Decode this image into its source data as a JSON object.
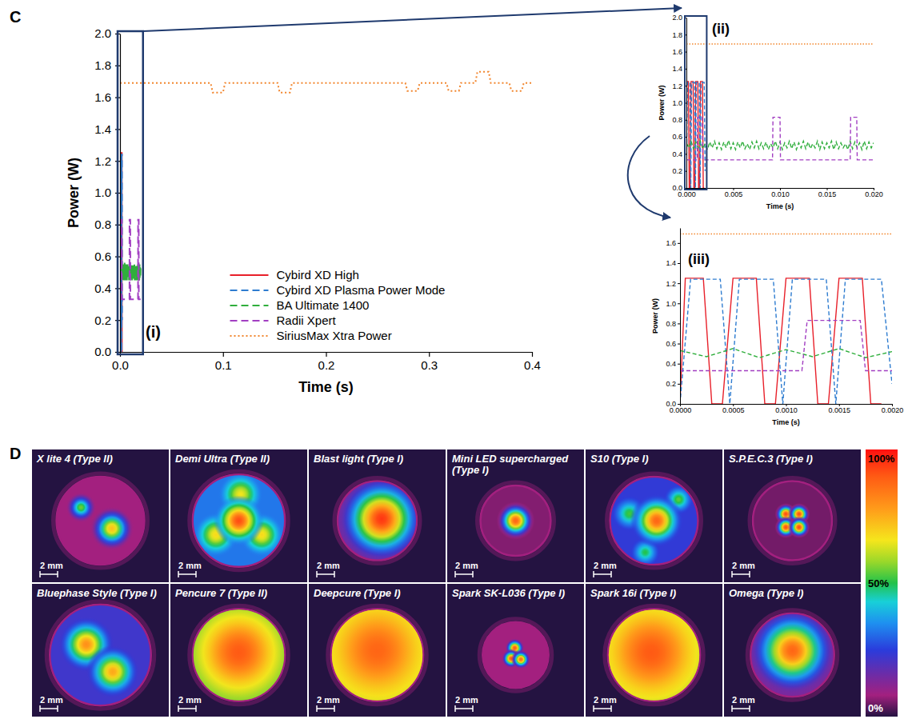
{
  "chart_data": {
    "type": "line",
    "panel": "C",
    "annotation": "(i)",
    "xlabel": "Time (s)",
    "ylabel": "Power (W)",
    "xlim": [
      0,
      0.4
    ],
    "ylim": [
      0,
      2
    ],
    "xticks": [
      {
        "value": 0,
        "label": "0.0"
      },
      0.1,
      0.2,
      0.3,
      0.4
    ],
    "yticks": [
      {
        "value": 0,
        "label": "0.0"
      },
      0.2,
      0.4,
      0.6,
      0.8,
      {
        "value": 1,
        "label": "1.0"
      },
      1.2,
      1.4,
      1.6,
      1.8,
      {
        "value": 2,
        "label": "2.0"
      }
    ],
    "grid": false,
    "legend": "bottom",
    "series": [
      {
        "name": "Cybird XD High",
        "color": "#e8202a",
        "line_style": "solid",
        "x": [
          0,
          5e-05,
          0.00022,
          0.0003,
          0.0004,
          0.0005,
          0.00072,
          0.0008,
          0.0009,
          0.001,
          0.00122,
          0.0013,
          0.0014,
          0.0015,
          0.00172,
          0.0018,
          0.0019
        ],
        "values": [
          0,
          1.25,
          1.25,
          0,
          0,
          1.25,
          1.25,
          0,
          0,
          1.25,
          1.25,
          0,
          0,
          1.25,
          1.25,
          0,
          0
        ]
      },
      {
        "name": "Cybird XD Plasma Power Mode",
        "color": "#2e7cd0",
        "line_style": "dashed",
        "x": [
          0,
          0.0001,
          0.00038,
          0.00047,
          0.00056,
          0.00088,
          0.00097,
          0.00106,
          0.00138,
          0.00147,
          0.00156,
          0.0019,
          0.002
        ],
        "values": [
          0,
          1.24,
          1.24,
          0,
          1.24,
          1.24,
          0,
          1.24,
          1.24,
          0,
          1.24,
          1.24,
          0.2
        ]
      },
      {
        "name": "BA Ultimate 1400",
        "color": "#2fae3c",
        "line_style": "dashed",
        "x": [
          0,
          0.00025,
          0.0005,
          0.00075,
          0.001,
          0.00125,
          0.0015,
          0.00175,
          0.002,
          0.00225,
          0.0025,
          0.00275,
          0.003,
          0.00325,
          0.0035,
          0.00375,
          0.004,
          0.00425,
          0.0045,
          0.00475,
          0.005,
          0.00525,
          0.0055,
          0.00575,
          0.006,
          0.00625,
          0.0065,
          0.00675,
          0.007,
          0.00725,
          0.0075,
          0.00775,
          0.008,
          0.00825,
          0.0085,
          0.00875,
          0.009,
          0.00925,
          0.0095,
          0.00975,
          0.01,
          0.01025,
          0.0105,
          0.01075,
          0.011,
          0.01125,
          0.0115,
          0.01175,
          0.012,
          0.01225,
          0.0125,
          0.01275,
          0.013,
          0.01325,
          0.0135,
          0.01375,
          0.014,
          0.01425,
          0.0145,
          0.01475,
          0.015,
          0.01525,
          0.0155,
          0.01575,
          0.016,
          0.01625,
          0.0165,
          0.01675,
          0.017,
          0.01725,
          0.0175,
          0.01775,
          0.018,
          0.01825,
          0.0185,
          0.01875,
          0.019,
          0.01925,
          0.0195,
          0.01975,
          0.02
        ],
        "values": [
          0.53,
          0.47,
          0.55,
          0.46,
          0.54,
          0.47,
          0.55,
          0.46,
          0.52,
          0.45,
          0.54,
          0.47,
          0.55,
          0.46,
          0.53,
          0.45,
          0.54,
          0.47,
          0.56,
          0.46,
          0.53,
          0.45,
          0.54,
          0.47,
          0.55,
          0.46,
          0.52,
          0.45,
          0.54,
          0.47,
          0.55,
          0.46,
          0.53,
          0.46,
          0.54,
          0.45,
          0.52,
          0.47,
          0.55,
          0.46,
          0.54,
          0.45,
          0.53,
          0.47,
          0.55,
          0.46,
          0.54,
          0.45,
          0.53,
          0.47,
          0.55,
          0.46,
          0.54,
          0.46,
          0.52,
          0.47,
          0.55,
          0.45,
          0.54,
          0.46,
          0.53,
          0.47,
          0.55,
          0.45,
          0.54,
          0.46,
          0.53,
          0.47,
          0.52,
          0.45,
          0.55,
          0.46,
          0.54,
          0.47,
          0.53,
          0.45,
          0.55,
          0.46,
          0.54,
          0.47,
          0.53
        ]
      },
      {
        "name": "Radii Xpert",
        "color": "#a23fc2",
        "line_style": "dashed",
        "x": [
          0,
          0.00115,
          0.0012,
          0.0017,
          0.00175,
          0.0092,
          0.00925,
          0.01,
          0.01005,
          0.0175,
          0.01755,
          0.0182,
          0.01825,
          0.02
        ],
        "values": [
          0.33,
          0.33,
          0.83,
          0.83,
          0.33,
          0.33,
          0.83,
          0.83,
          0.33,
          0.33,
          0.83,
          0.83,
          0.33,
          0.33
        ]
      },
      {
        "name": "SiriusMax Xtra Power",
        "color": "#f2862e",
        "line_style": "dotted",
        "x": [
          0,
          0.088,
          0.09,
          0.1,
          0.102,
          0.153,
          0.155,
          0.165,
          0.167,
          0.277,
          0.279,
          0.289,
          0.291,
          0.317,
          0.319,
          0.329,
          0.331,
          0.345,
          0.347,
          0.358,
          0.36,
          0.378,
          0.38,
          0.39,
          0.392,
          0.4
        ],
        "values": [
          1.69,
          1.69,
          1.63,
          1.63,
          1.69,
          1.69,
          1.63,
          1.63,
          1.69,
          1.69,
          1.64,
          1.64,
          1.69,
          1.69,
          1.64,
          1.64,
          1.69,
          1.69,
          1.76,
          1.76,
          1.69,
          1.69,
          1.64,
          1.64,
          1.69,
          1.69
        ]
      }
    ],
    "insets": [
      {
        "annotation": "(ii)",
        "xlabel": "Time (s)",
        "ylabel": "Power (W)",
        "xlim": [
          0,
          0.02
        ],
        "ylim": [
          0,
          2
        ],
        "xticks": [
          {
            "value": 0,
            "label": "0.000"
          },
          0.005,
          {
            "value": 0.01,
            "label": "0.010"
          },
          0.015,
          {
            "value": 0.02,
            "label": "0.020"
          }
        ],
        "yticks": [
          {
            "value": 0,
            "label": "0.0"
          },
          0.2,
          0.4,
          0.6,
          0.8,
          {
            "value": 1,
            "label": "1.0"
          },
          1.2,
          1.4,
          1.6,
          1.8,
          {
            "value": 2,
            "label": "2.0"
          }
        ]
      },
      {
        "annotation": "(iii)",
        "xlabel": "Time (s)",
        "ylabel": "Power (W)",
        "xlim": [
          0,
          0.002
        ],
        "ylim": [
          0,
          1.75
        ],
        "xticks": [
          {
            "value": 0,
            "label": "0.0000"
          },
          0.0005,
          {
            "value": 0.001,
            "label": "0.0010"
          },
          0.0015,
          {
            "value": 0.002,
            "label": "0.0020"
          }
        ],
        "yticks": [
          {
            "value": 0,
            "label": "0.0"
          },
          0.2,
          0.4,
          0.6,
          0.8,
          {
            "value": 1,
            "label": "1.0"
          },
          1.2,
          1.4,
          1.6
        ]
      }
    ]
  },
  "beam_profiles": {
    "panel": "D",
    "scale_bar": {
      "length": 2,
      "label": "2 mm"
    },
    "colorbar": {
      "range": [
        0,
        100
      ],
      "ticks": [
        {
          "value": 100,
          "label": "100%"
        },
        {
          "value": 50,
          "label": "50%"
        },
        {
          "value": 0,
          "label": "0%"
        }
      ]
    },
    "items": [
      {
        "label": "X lite 4 (Type II)",
        "aperture": 10,
        "floor": 8,
        "spots": [
          {
            "x": -2.2,
            "y": -1.5,
            "r": 1.1,
            "intensity": 55
          },
          {
            "x": 1.3,
            "y": 0.9,
            "r": 1.6,
            "intensity": 72
          }
        ]
      },
      {
        "label": "Demi Ultra (Type II)",
        "aperture": 10.5,
        "floor": 32,
        "spots": [
          {
            "x": -2.6,
            "y": 1.6,
            "r": 1.6,
            "intensity": 68
          },
          {
            "x": 2.6,
            "y": 1.6,
            "r": 1.6,
            "intensity": 68
          },
          {
            "x": 0.2,
            "y": -3,
            "r": 1.6,
            "intensity": 66
          },
          {
            "x": 0,
            "y": 0,
            "r": 1.8,
            "intensity": 92
          }
        ]
      },
      {
        "label": "Blast light (Type I)",
        "aperture": 9,
        "floor": 15,
        "spots": [
          {
            "x": 0.5,
            "y": -0.2,
            "r": 3.2,
            "intensity": 95
          }
        ]
      },
      {
        "label": "Mini LED supercharged (Type I)",
        "aperture": 8,
        "floor": 6,
        "spots": [
          {
            "x": 0,
            "y": 0,
            "r": 1.4,
            "intensity": 88
          }
        ]
      },
      {
        "label": "S10 (Type I)",
        "aperture": 10,
        "floor": 24,
        "spots": [
          {
            "x": -2.8,
            "y": -0.8,
            "r": 1.3,
            "intensity": 52
          },
          {
            "x": 2.8,
            "y": -2.4,
            "r": 1.1,
            "intensity": 54
          },
          {
            "x": -1,
            "y": 3.6,
            "r": 1.1,
            "intensity": 50
          },
          {
            "x": 0.3,
            "y": 0,
            "r": 1.9,
            "intensity": 88
          }
        ]
      },
      {
        "label": "S.P.E.C.3 (Type I)",
        "aperture": 9,
        "floor": 5,
        "spots": [
          {
            "x": -0.75,
            "y": -0.75,
            "r": 0.8,
            "intensity": 92
          },
          {
            "x": 0.75,
            "y": -0.75,
            "r": 0.8,
            "intensity": 92
          },
          {
            "x": -0.75,
            "y": 0.75,
            "r": 0.8,
            "intensity": 92
          },
          {
            "x": 0.75,
            "y": 0.75,
            "r": 0.8,
            "intensity": 92
          }
        ]
      },
      {
        "label": "Bluephase Style (Type I)",
        "aperture": 11.5,
        "floor": 22,
        "spots": [
          {
            "x": -1.6,
            "y": -1.2,
            "r": 2,
            "intensity": 80
          },
          {
            "x": 1.4,
            "y": 1.9,
            "r": 1.9,
            "intensity": 76
          }
        ]
      },
      {
        "label": "Pencure 7 (Type II)",
        "aperture": 10.5,
        "floor": 55,
        "spots": [
          {
            "x": 0,
            "y": -0.3,
            "r": 4.2,
            "intensity": 90
          }
        ]
      },
      {
        "label": "Deepcure (Type I)",
        "aperture": 10.5,
        "floor": 62,
        "spots": [
          {
            "x": 0,
            "y": -0.5,
            "r": 4.6,
            "intensity": 88
          }
        ]
      },
      {
        "label": "Spark SK-L036 (Type I)",
        "aperture": 7.5,
        "floor": 8,
        "spots": [
          {
            "x": -0.1,
            "y": -0.8,
            "r": 0.7,
            "intensity": 90
          },
          {
            "x": -0.5,
            "y": 0.4,
            "r": 0.7,
            "intensity": 90
          },
          {
            "x": 0.6,
            "y": 0.5,
            "r": 0.7,
            "intensity": 86
          }
        ]
      },
      {
        "label": "Spark 16i (Type I)",
        "aperture": 10.5,
        "floor": 60,
        "spots": [
          {
            "x": -0.3,
            "y": -0.3,
            "r": 4.6,
            "intensity": 90
          }
        ]
      },
      {
        "label": "Omega (Type I)",
        "aperture": 9.5,
        "floor": 14,
        "spots": [
          {
            "x": 0,
            "y": -0.5,
            "r": 3.2,
            "intensity": 88
          }
        ]
      }
    ]
  }
}
